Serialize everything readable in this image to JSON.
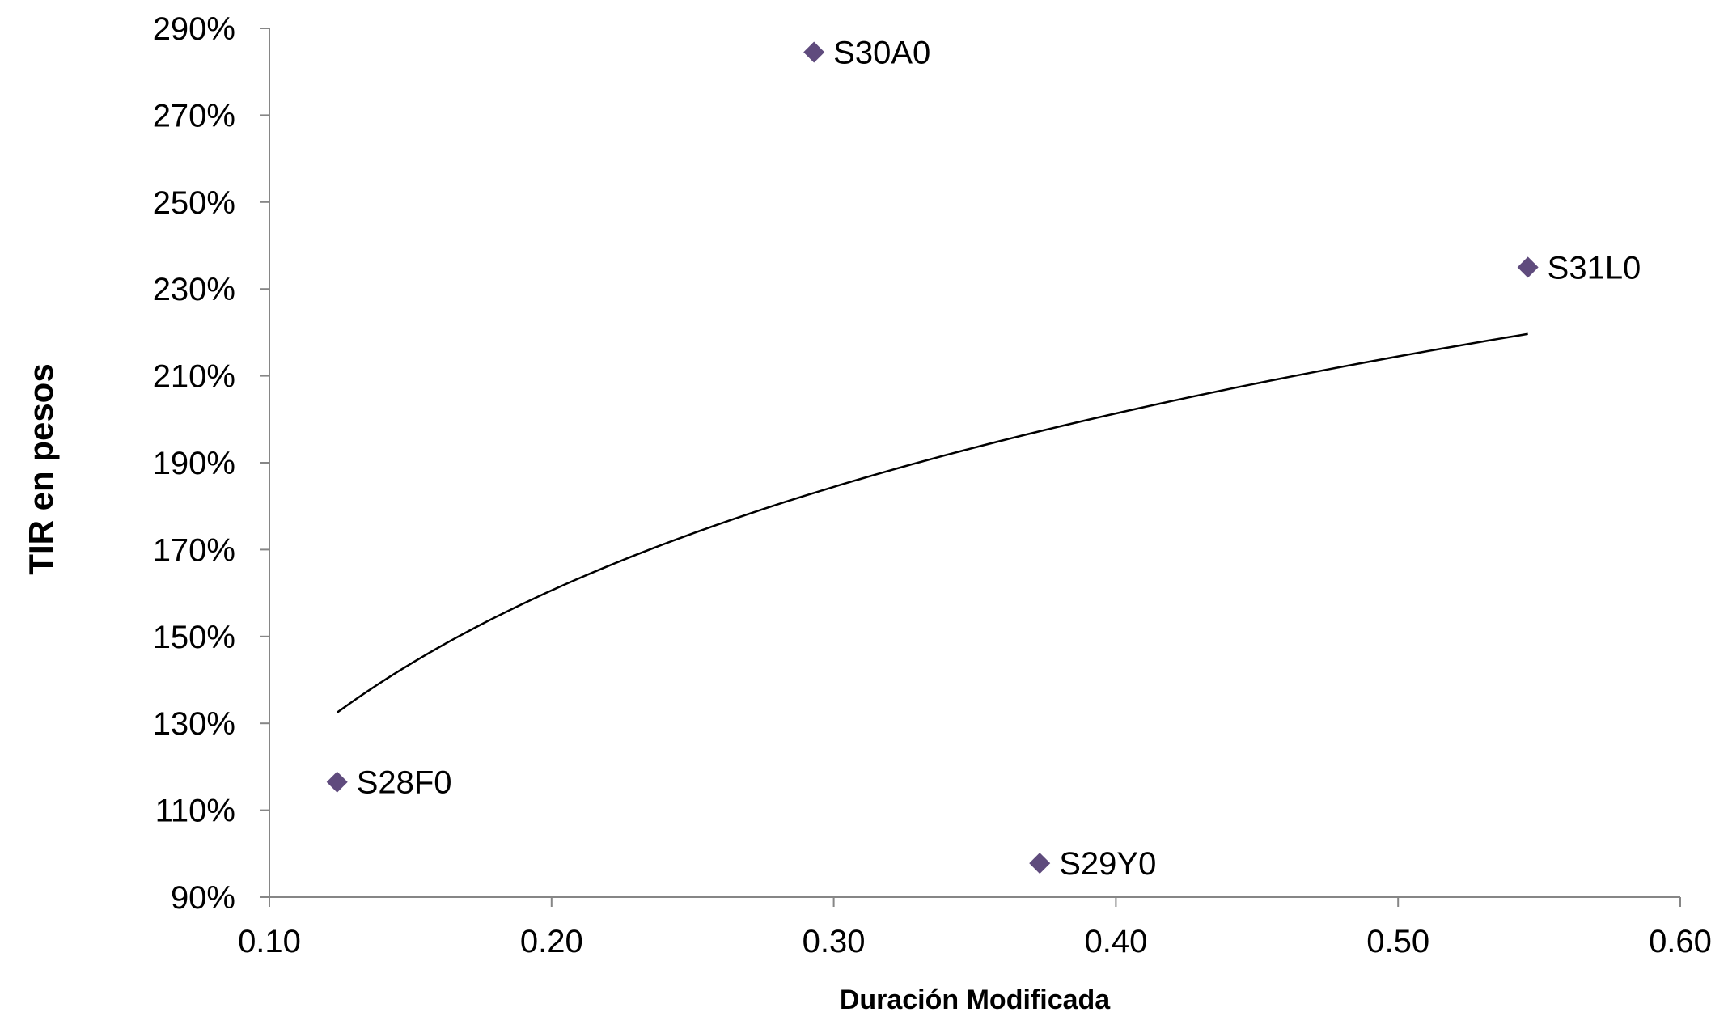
{
  "chart_data": {
    "type": "scatter",
    "xlabel": "Duración Modificada",
    "ylabel": "TIR en pesos",
    "xlim": [
      0.1,
      0.6
    ],
    "ylim": [
      0.9,
      2.9
    ],
    "x_ticks": [
      0.1,
      0.2,
      0.3,
      0.4,
      0.5,
      0.6
    ],
    "x_tick_labels": [
      "0.10",
      "0.20",
      "0.30",
      "0.40",
      "0.50",
      "0.60"
    ],
    "y_ticks": [
      0.9,
      1.1,
      1.3,
      1.5,
      1.7,
      1.9,
      2.1,
      2.3,
      2.5,
      2.7,
      2.9
    ],
    "y_tick_labels": [
      "90%",
      "110%",
      "130%",
      "150%",
      "170%",
      "190%",
      "210%",
      "230%",
      "250%",
      "270%",
      "290%"
    ],
    "grid": false,
    "legend": "none",
    "series": [
      {
        "color": "#5f4b7d",
        "marker": "diamond",
        "points": [
          {
            "label": "S28F0",
            "x": 0.124,
            "y": 1.165
          },
          {
            "label": "S30A0",
            "x": 0.293,
            "y": 2.845
          },
          {
            "label": "S29Y0",
            "x": 0.373,
            "y": 0.978
          },
          {
            "label": "S31L0",
            "x": 0.546,
            "y": 2.35
          }
        ]
      }
    ],
    "trendline": {
      "type": "logarithmic",
      "color": "#000000",
      "x_range": [
        0.124,
        0.546
      ],
      "points": [
        {
          "x": 0.124,
          "y": 1.325
        },
        {
          "x": 0.2,
          "y": 1.605
        },
        {
          "x": 0.3,
          "y": 1.845
        },
        {
          "x": 0.4,
          "y": 2.015
        },
        {
          "x": 0.5,
          "y": 2.145
        },
        {
          "x": 0.546,
          "y": 2.195
        }
      ]
    }
  }
}
